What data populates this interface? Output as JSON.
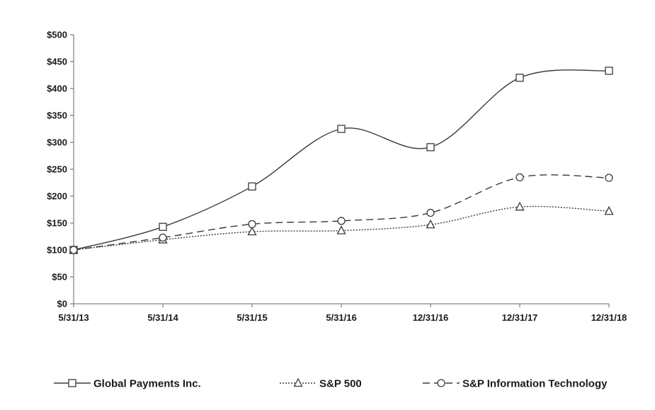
{
  "chart_data": {
    "type": "line",
    "categories": [
      "5/31/13",
      "5/31/14",
      "5/31/15",
      "5/31/16",
      "12/31/16",
      "12/31/17",
      "12/31/18"
    ],
    "ylim": [
      0,
      500
    ],
    "yticks": [
      0,
      50,
      100,
      150,
      200,
      250,
      300,
      350,
      400,
      450,
      500
    ],
    "ytick_labels": [
      "$0",
      "$50",
      "$100",
      "$150",
      "$200",
      "$250",
      "$300",
      "$350",
      "$400",
      "$450",
      "$500"
    ],
    "grid": false,
    "legend_position": "bottom",
    "series": [
      {
        "name": "Global Payments Inc.",
        "values": [
          100,
          143,
          218,
          325,
          291,
          420,
          433
        ],
        "marker": "square",
        "dash": "solid",
        "color": "#3a3a3a"
      },
      {
        "name": "S&P 500",
        "values": [
          100,
          119,
          134,
          136,
          147,
          180,
          172
        ],
        "marker": "triangle",
        "dash": "dotted",
        "color": "#3a3a3a"
      },
      {
        "name": "S&P Information Technology",
        "values": [
          100,
          123,
          148,
          154,
          169,
          235,
          234
        ],
        "marker": "circle",
        "dash": "dashed",
        "color": "#3a3a3a"
      }
    ]
  }
}
